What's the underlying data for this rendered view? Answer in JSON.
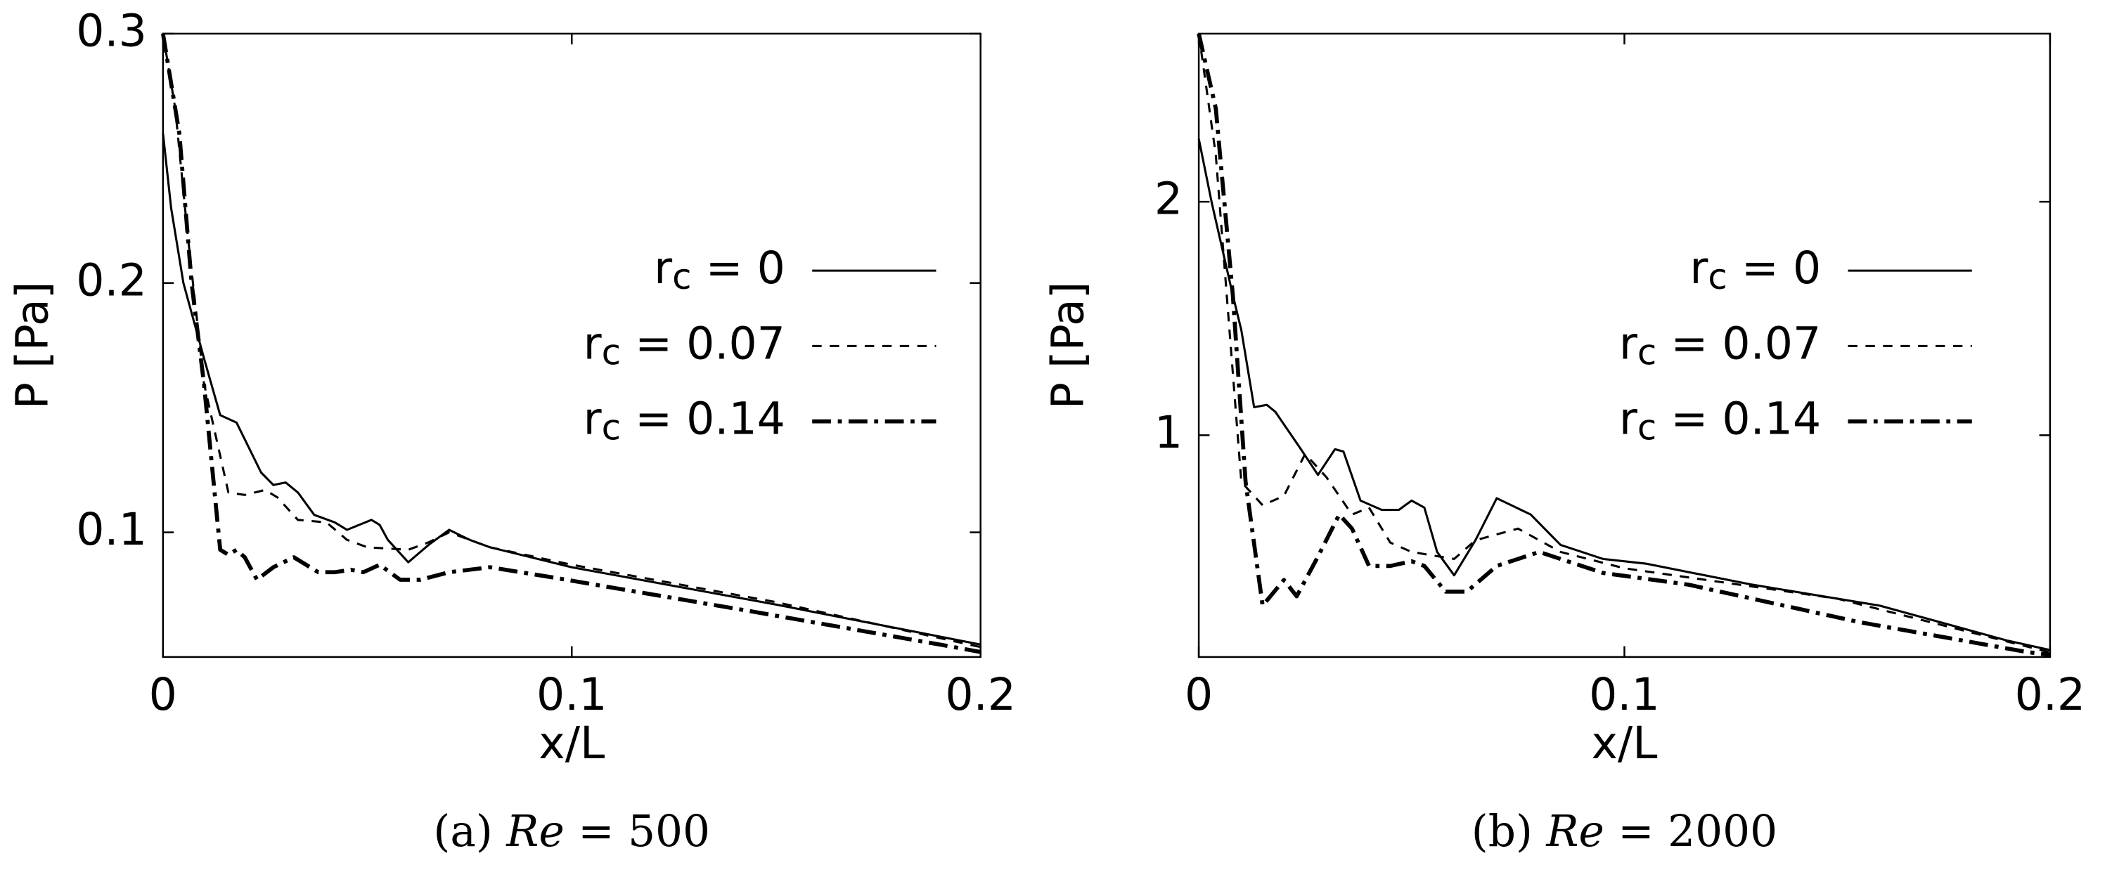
{
  "chart_data": [
    {
      "type": "line",
      "caption": "(a) Re = 500",
      "x_label": "x/L",
      "y_label": "P [Pa]",
      "xlim": [
        0,
        0.2
      ],
      "ylim": [
        0.05,
        0.3
      ],
      "xticks": [
        0,
        0.1,
        0.2
      ],
      "yticks": [
        0.1,
        0.2,
        0.3
      ],
      "grid": false,
      "legend": "right",
      "series": [
        {
          "name": "rc = 0",
          "color": "#000000",
          "dash": "solid",
          "x": [
            0,
            0.002,
            0.005,
            0.01,
            0.014,
            0.018,
            0.024,
            0.027,
            0.03,
            0.033,
            0.037,
            0.042,
            0.045,
            0.048,
            0.051,
            0.053,
            0.055,
            0.06,
            0.065,
            0.07,
            0.075,
            0.08,
            0.1,
            0.15,
            0.2
          ],
          "values": [
            0.26,
            0.23,
            0.2,
            0.17,
            0.147,
            0.144,
            0.124,
            0.119,
            0.12,
            0.116,
            0.107,
            0.104,
            0.101,
            0.103,
            0.105,
            0.103,
            0.097,
            0.088,
            0.095,
            0.101,
            0.097,
            0.094,
            0.086,
            0.071,
            0.055
          ]
        },
        {
          "name": "rc = 0.07",
          "color": "#000000",
          "dash": "dashed",
          "x": [
            0,
            0.003,
            0.006,
            0.01,
            0.016,
            0.02,
            0.025,
            0.028,
            0.033,
            0.04,
            0.045,
            0.05,
            0.06,
            0.065,
            0.07,
            0.08,
            0.1,
            0.15,
            0.2
          ],
          "values": [
            0.3,
            0.27,
            0.22,
            0.16,
            0.116,
            0.115,
            0.117,
            0.114,
            0.105,
            0.104,
            0.097,
            0.094,
            0.093,
            0.096,
            0.1,
            0.094,
            0.087,
            0.072,
            0.054
          ]
        },
        {
          "name": "rc = 0.14",
          "color": "#000000",
          "dash": "dashdot",
          "x": [
            0,
            0.004,
            0.007,
            0.01,
            0.014,
            0.016,
            0.018,
            0.02,
            0.023,
            0.027,
            0.032,
            0.038,
            0.042,
            0.046,
            0.049,
            0.053,
            0.058,
            0.063,
            0.07,
            0.08,
            0.095,
            0.12,
            0.145,
            0.19,
            0.2
          ],
          "values": [
            0.3,
            0.26,
            0.2,
            0.16,
            0.093,
            0.091,
            0.093,
            0.09,
            0.081,
            0.086,
            0.09,
            0.084,
            0.084,
            0.085,
            0.084,
            0.087,
            0.081,
            0.081,
            0.084,
            0.086,
            0.082,
            0.075,
            0.068,
            0.055,
            0.052
          ]
        }
      ]
    },
    {
      "type": "line",
      "caption": "(b) Re = 2000",
      "x_label": "x/L",
      "y_label": "P [Pa]",
      "xlim": [
        0,
        0.2
      ],
      "ylim": [
        0.05,
        2.72
      ],
      "xticks": [
        0,
        0.1,
        0.2
      ],
      "yticks": [
        1,
        2
      ],
      "grid": false,
      "legend": "right",
      "series": [
        {
          "name": "rc = 0",
          "color": "#000000",
          "dash": "solid",
          "x": [
            0,
            0.003,
            0.008,
            0.01,
            0.013,
            0.016,
            0.018,
            0.024,
            0.028,
            0.032,
            0.034,
            0.038,
            0.043,
            0.047,
            0.05,
            0.053,
            0.056,
            0.06,
            0.065,
            0.07,
            0.078,
            0.085,
            0.095,
            0.105,
            0.13,
            0.16,
            0.19,
            0.2
          ],
          "values": [
            2.27,
            2.0,
            1.6,
            1.45,
            1.12,
            1.13,
            1.1,
            0.94,
            0.83,
            0.94,
            0.93,
            0.72,
            0.68,
            0.68,
            0.72,
            0.69,
            0.5,
            0.4,
            0.55,
            0.73,
            0.66,
            0.53,
            0.47,
            0.45,
            0.36,
            0.27,
            0.12,
            0.08
          ]
        },
        {
          "name": "rc = 0.07",
          "color": "#000000",
          "dash": "dashed",
          "x": [
            0,
            0.004,
            0.007,
            0.01,
            0.015,
            0.02,
            0.025,
            0.03,
            0.036,
            0.04,
            0.045,
            0.05,
            0.06,
            0.065,
            0.075,
            0.085,
            0.1,
            0.15,
            0.2
          ],
          "values": [
            2.72,
            2.2,
            1.5,
            0.8,
            0.7,
            0.74,
            0.92,
            0.82,
            0.66,
            0.69,
            0.54,
            0.5,
            0.47,
            0.55,
            0.6,
            0.5,
            0.43,
            0.3,
            0.07
          ]
        },
        {
          "name": "rc = 0.14",
          "color": "#000000",
          "dash": "dashdot",
          "x": [
            0,
            0.004,
            0.008,
            0.011,
            0.015,
            0.02,
            0.023,
            0.028,
            0.033,
            0.036,
            0.04,
            0.045,
            0.05,
            0.053,
            0.058,
            0.063,
            0.07,
            0.08,
            0.095,
            0.115,
            0.155,
            0.195,
            0.2
          ],
          "values": [
            2.72,
            2.4,
            1.6,
            0.8,
            0.27,
            0.38,
            0.31,
            0.48,
            0.66,
            0.6,
            0.44,
            0.44,
            0.46,
            0.44,
            0.33,
            0.33,
            0.44,
            0.5,
            0.41,
            0.36,
            0.2,
            0.07,
            0.06
          ]
        }
      ]
    }
  ]
}
